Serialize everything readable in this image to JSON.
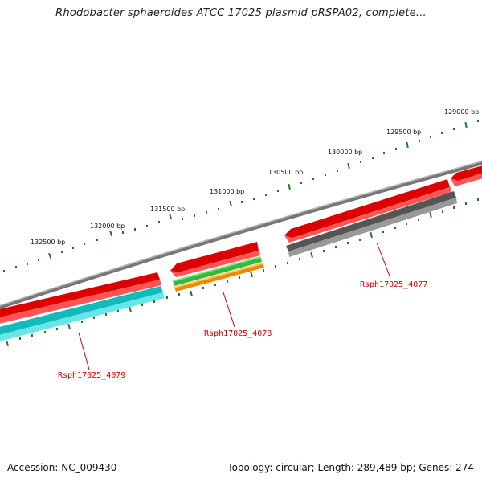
{
  "title": "Rhodobacter sphaeroides ATCC 17025 plasmid pRSPA02, complete...",
  "footer": {
    "accession": "Accession: NC_009430",
    "summary": "Topology: circular; Length: 289,489 bp; Genes: 274"
  },
  "colors": {
    "backbone": "#8a8a8a",
    "forward_cds": "#ee1111",
    "reverse_cds_cyan": "#19c6c6",
    "reverse_cds_gray": "#666666",
    "gc_green": "#33bb33",
    "gc_orange": "#ff9900",
    "tick": "#1f7a1f",
    "gene_label": "#cc0000"
  },
  "axis": {
    "ticks": [
      {
        "label": "132500 bp"
      },
      {
        "label": "132000 bp"
      },
      {
        "label": "131500 bp"
      },
      {
        "label": "131000 bp"
      },
      {
        "label": "130500 bp"
      },
      {
        "label": "130000 bp"
      },
      {
        "label": "129500 bp"
      },
      {
        "label": "129000 bp"
      }
    ]
  },
  "genes": [
    {
      "name": "Rsph17025_4079"
    },
    {
      "name": "Rsph17025_4078"
    },
    {
      "name": "Rsph17025_4077"
    }
  ]
}
